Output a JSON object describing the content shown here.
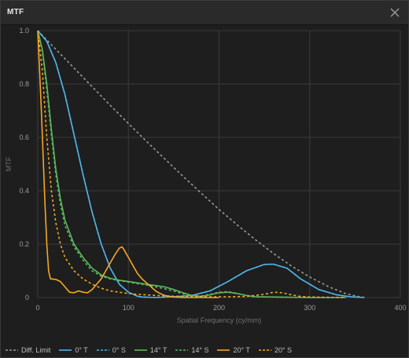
{
  "window": {
    "title": "MTF"
  },
  "icons": {
    "close": "close-icon"
  },
  "colors": {
    "diff": "#9a9a9a",
    "blue": "#4fb3e8",
    "green": "#5cb85c",
    "orange": "#f5a623",
    "grid": "#3a3a3a",
    "tick": "#9a9a9a"
  },
  "chart_data": {
    "type": "line",
    "title": "",
    "xlabel": "Spatial Frequency (cy/mm)",
    "ylabel": "MTF",
    "xlim": [
      0,
      400
    ],
    "ylim": [
      0,
      1.0
    ],
    "xticks": [
      0,
      100,
      200,
      300,
      400
    ],
    "yticks": [
      0,
      0.2,
      0.4,
      0.6,
      0.8,
      1.0
    ],
    "ytick_labels": [
      "0",
      "0.2",
      "0.4",
      "0.6",
      "0.8",
      "1.0"
    ],
    "grid": true,
    "legend_position": "bottom",
    "series": [
      {
        "name": "Diff. Limit",
        "color": "#9a9a9a",
        "dashed": true,
        "x": [
          0,
          10,
          20,
          40,
          60,
          80,
          100,
          120,
          140,
          160,
          180,
          200,
          220,
          240,
          260,
          280,
          300,
          320,
          340,
          355,
          362
        ],
        "y": [
          1.0,
          0.965,
          0.93,
          0.86,
          0.79,
          0.72,
          0.652,
          0.585,
          0.52,
          0.455,
          0.392,
          0.33,
          0.272,
          0.217,
          0.165,
          0.118,
          0.077,
          0.042,
          0.014,
          0.003,
          0.0
        ]
      },
      {
        "name": "0° T",
        "color": "#4fb3e8",
        "dashed": false,
        "x": [
          0,
          10,
          20,
          30,
          40,
          50,
          60,
          70,
          80,
          90,
          100,
          110,
          115,
          130,
          150,
          170,
          190,
          210,
          230,
          250,
          260,
          275,
          290,
          310,
          330,
          345,
          360
        ],
        "y": [
          1.0,
          0.96,
          0.88,
          0.76,
          0.61,
          0.46,
          0.32,
          0.2,
          0.11,
          0.05,
          0.02,
          0.005,
          0.002,
          0.0,
          0.003,
          0.008,
          0.025,
          0.06,
          0.1,
          0.124,
          0.125,
          0.11,
          0.07,
          0.03,
          0.01,
          0.003,
          0.0
        ]
      },
      {
        "name": "0° S",
        "color": "#4fb3e8",
        "dashed": true,
        "x": [
          0,
          10,
          20,
          30,
          40,
          50,
          60,
          70,
          80,
          90,
          100,
          110,
          115,
          130,
          150,
          170,
          190,
          210,
          230,
          250,
          260,
          275,
          290,
          310,
          330,
          345,
          360
        ],
        "y": [
          1.0,
          0.96,
          0.88,
          0.76,
          0.61,
          0.46,
          0.32,
          0.2,
          0.11,
          0.05,
          0.02,
          0.005,
          0.002,
          0.0,
          0.003,
          0.008,
          0.025,
          0.06,
          0.1,
          0.124,
          0.125,
          0.11,
          0.07,
          0.03,
          0.01,
          0.003,
          0.0
        ]
      },
      {
        "name": "14° T",
        "color": "#5cb85c",
        "dashed": false,
        "x": [
          0,
          5,
          10,
          15,
          20,
          25,
          30,
          40,
          50,
          60,
          70,
          80,
          90,
          100,
          110,
          120,
          130,
          140,
          150,
          160,
          170,
          180,
          190,
          200,
          210,
          220,
          230,
          240,
          260,
          280,
          300,
          320,
          340
        ],
        "y": [
          1.0,
          0.93,
          0.8,
          0.63,
          0.48,
          0.37,
          0.29,
          0.2,
          0.15,
          0.11,
          0.085,
          0.072,
          0.065,
          0.06,
          0.055,
          0.05,
          0.045,
          0.04,
          0.03,
          0.018,
          0.008,
          0.004,
          0.01,
          0.018,
          0.02,
          0.015,
          0.008,
          0.003,
          0.002,
          0.001,
          0.0,
          0.0,
          0.0
        ]
      },
      {
        "name": "14° S",
        "color": "#5cb85c",
        "dashed": true,
        "x": [
          0,
          5,
          10,
          15,
          20,
          25,
          30,
          40,
          50,
          60,
          70,
          80,
          90,
          100,
          110,
          120,
          130,
          140,
          150,
          160,
          170,
          180,
          190,
          200,
          210,
          220,
          230,
          240,
          260,
          280,
          300,
          320,
          340
        ],
        "y": [
          1.0,
          0.92,
          0.78,
          0.61,
          0.46,
          0.35,
          0.27,
          0.19,
          0.14,
          0.1,
          0.08,
          0.07,
          0.063,
          0.058,
          0.052,
          0.047,
          0.04,
          0.033,
          0.024,
          0.014,
          0.007,
          0.006,
          0.012,
          0.02,
          0.022,
          0.016,
          0.008,
          0.003,
          0.002,
          0.001,
          0.0,
          0.0,
          0.0
        ]
      },
      {
        "name": "20° T",
        "color": "#f5a623",
        "dashed": false,
        "x": [
          0,
          4,
          8,
          10,
          12,
          14,
          20,
          25,
          30,
          35,
          40,
          45,
          50,
          55,
          60,
          65,
          70,
          75,
          80,
          85,
          90,
          93,
          95,
          100,
          105,
          110,
          115,
          120,
          125,
          130,
          135,
          140,
          150,
          160,
          180,
          200
        ],
        "y": [
          1.0,
          0.7,
          0.35,
          0.2,
          0.1,
          0.07,
          0.068,
          0.06,
          0.04,
          0.02,
          0.018,
          0.025,
          0.02,
          0.018,
          0.03,
          0.05,
          0.07,
          0.1,
          0.13,
          0.16,
          0.185,
          0.19,
          0.18,
          0.15,
          0.12,
          0.09,
          0.07,
          0.055,
          0.04,
          0.025,
          0.015,
          0.008,
          0.002,
          0.0,
          0.0,
          0.0
        ]
      },
      {
        "name": "20° S",
        "color": "#f5a623",
        "dashed": true,
        "x": [
          0,
          5,
          10,
          15,
          20,
          25,
          30,
          40,
          50,
          60,
          70,
          80,
          90,
          100,
          110,
          120,
          130,
          140,
          150,
          170,
          190,
          210,
          230,
          250,
          260,
          270,
          280,
          290,
          300,
          320,
          340
        ],
        "y": [
          1.0,
          0.85,
          0.6,
          0.4,
          0.28,
          0.2,
          0.15,
          0.1,
          0.07,
          0.05,
          0.035,
          0.025,
          0.02,
          0.015,
          0.012,
          0.01,
          0.008,
          0.006,
          0.005,
          0.004,
          0.003,
          0.003,
          0.004,
          0.012,
          0.02,
          0.018,
          0.01,
          0.004,
          0.002,
          0.001,
          0.0
        ]
      }
    ]
  }
}
